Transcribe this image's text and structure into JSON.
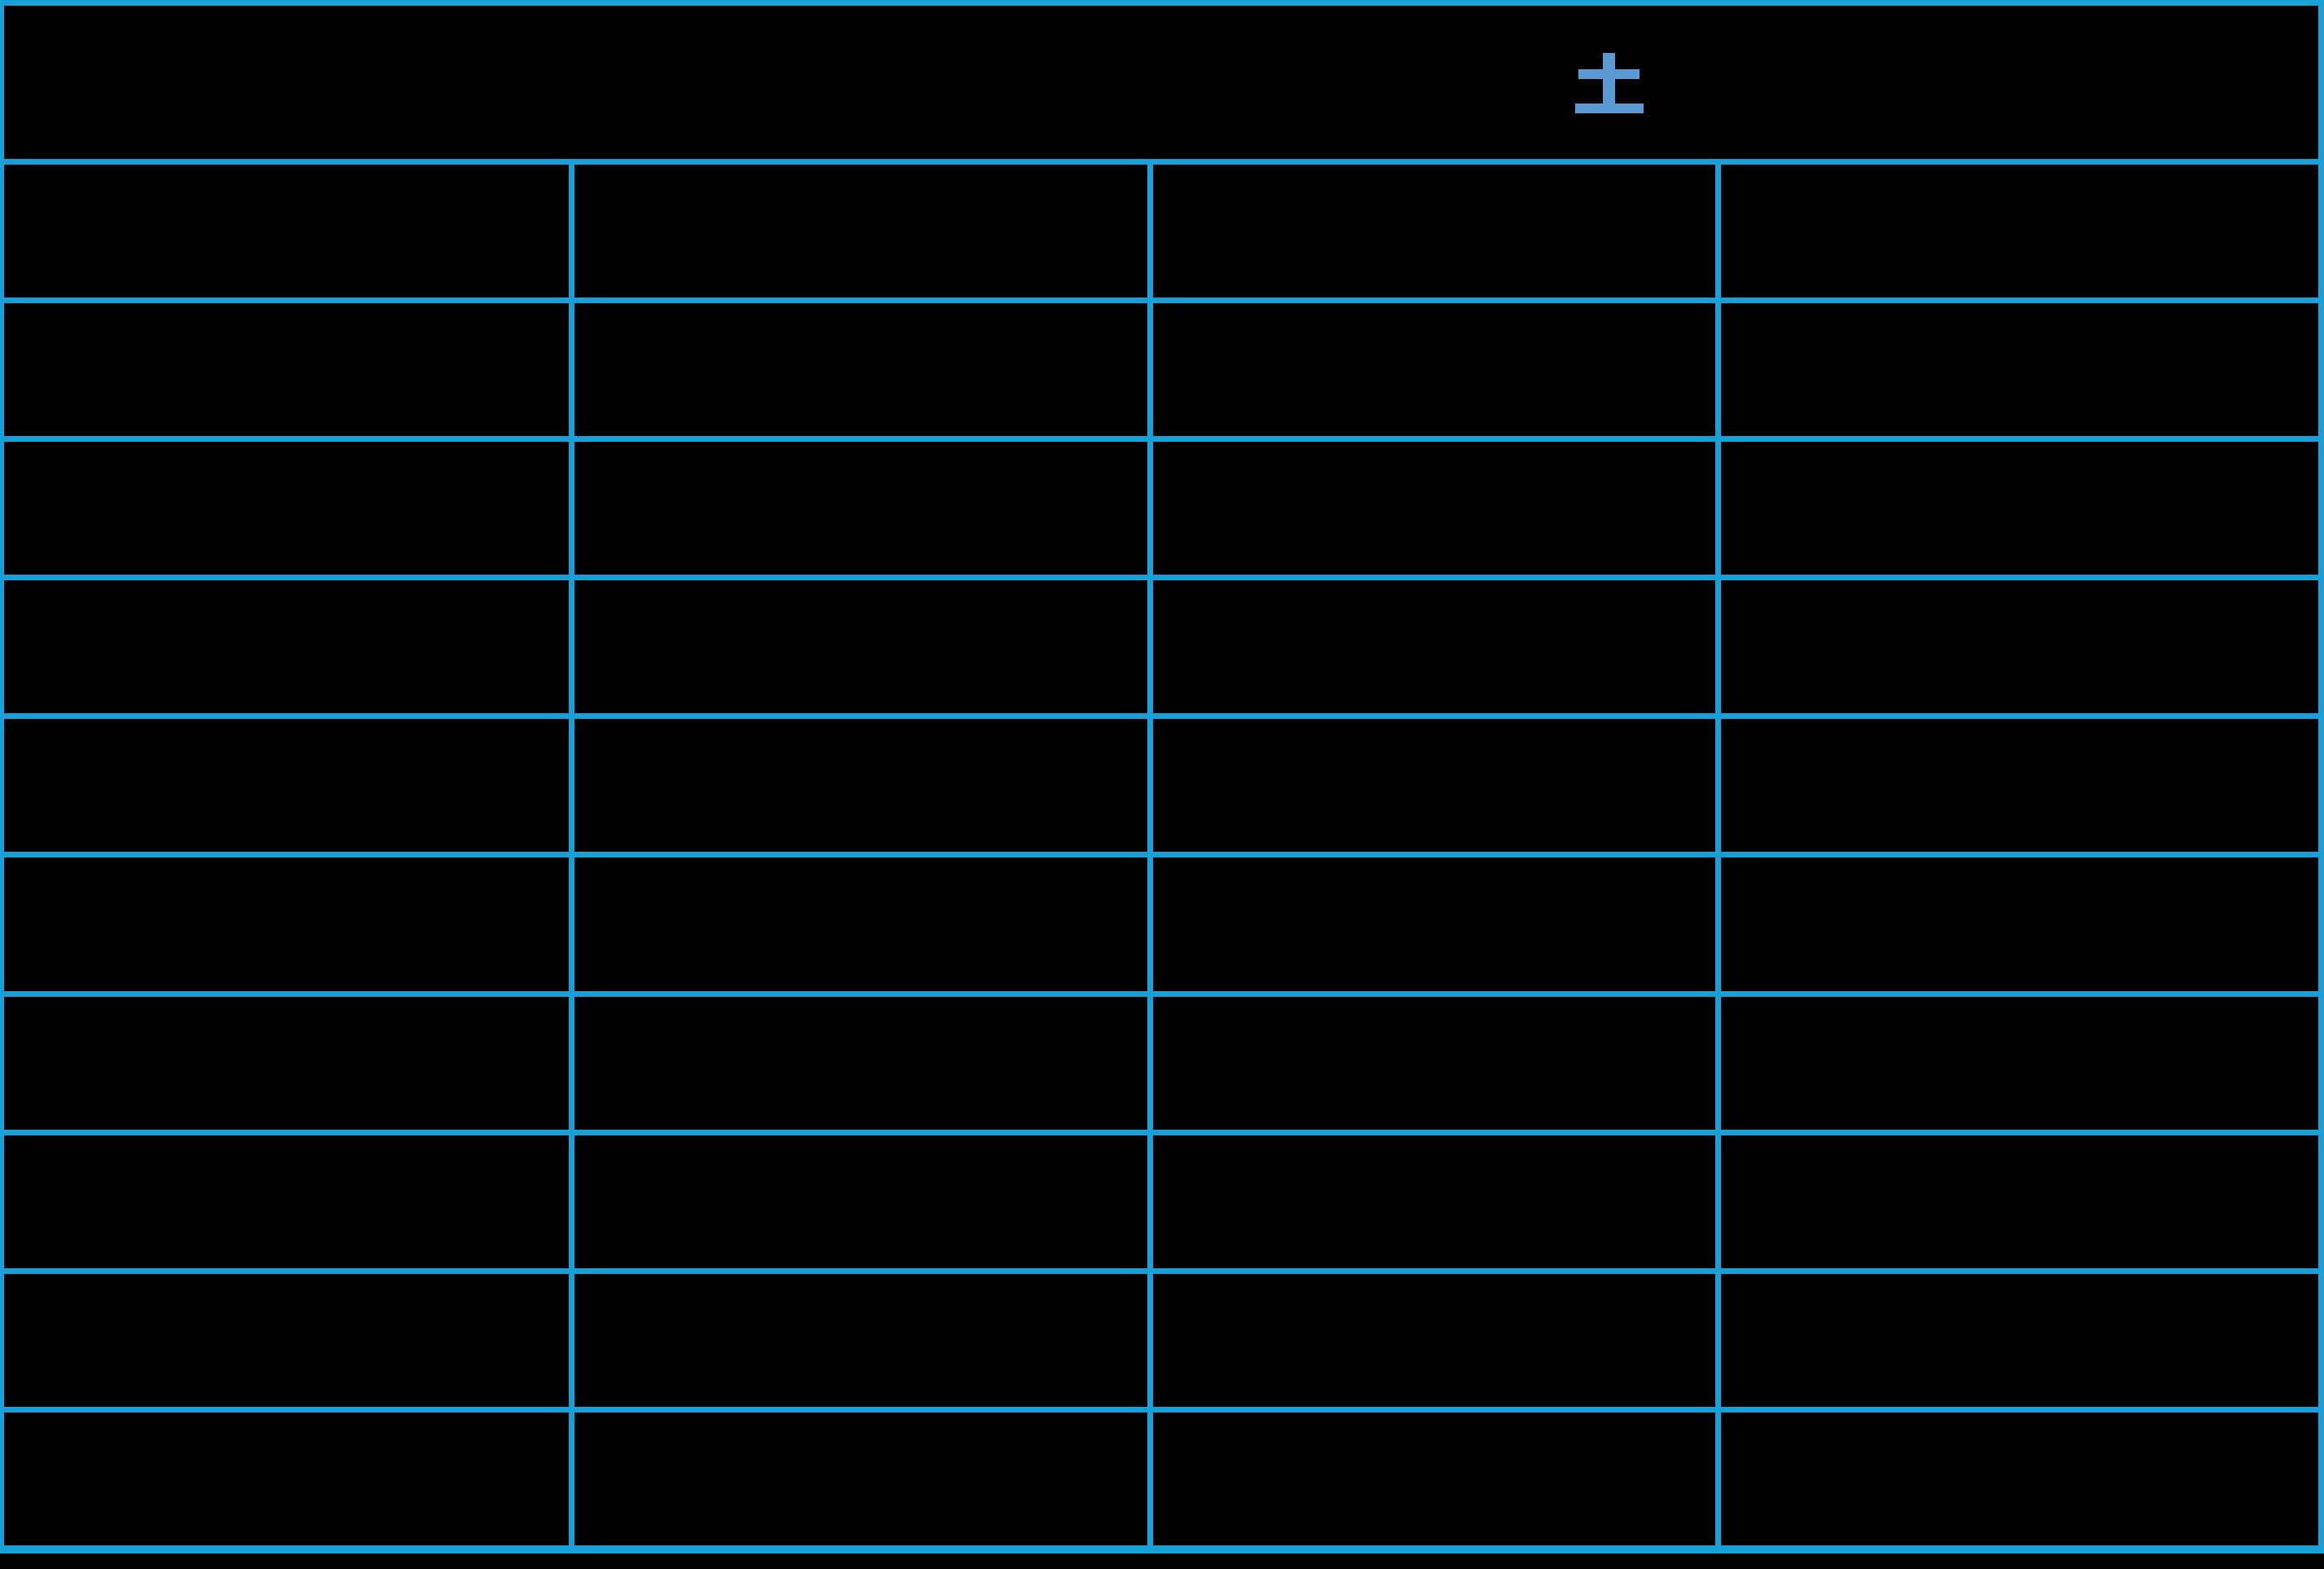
{
  "slide": {
    "background_color": "#000000"
  },
  "table": {
    "grid_color": "#18A0D8",
    "column_count": 4,
    "header": {
      "day_label": "土",
      "day_label_color": "#5B9BD5"
    },
    "rows": [
      [
        "",
        "",
        "",
        ""
      ],
      [
        "",
        "",
        "",
        ""
      ],
      [
        "",
        "",
        "",
        ""
      ],
      [
        "",
        "",
        "",
        ""
      ],
      [
        "",
        "",
        "",
        ""
      ],
      [
        "",
        "",
        "",
        ""
      ],
      [
        "",
        "",
        "",
        ""
      ],
      [
        "",
        "",
        "",
        ""
      ],
      [
        "",
        "",
        "",
        ""
      ],
      [
        "",
        "",
        "",
        ""
      ]
    ]
  }
}
